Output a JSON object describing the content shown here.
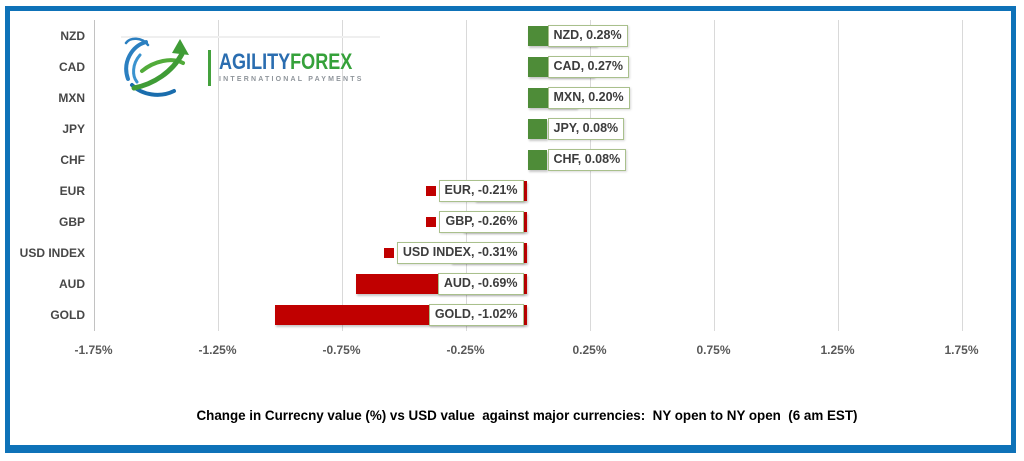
{
  "frame": {
    "border_color": "#0e72b8"
  },
  "logo": {
    "brand_primary": "AGILITY",
    "brand_secondary": "FOREX",
    "tagline": "INTERNATIONAL PAYMENTS",
    "primary_color": "#2a6db0",
    "secondary_color": "#35a13a",
    "separator_color": "#44a13d"
  },
  "chart_data": {
    "type": "bar",
    "orientation": "horizontal",
    "title": "Change in Currecny value (%) vs USD value  against major currencies:  NY open to NY open  (6 am EST)",
    "categories": [
      "NZD",
      "CAD",
      "MXN",
      "JPY",
      "CHF",
      "EUR",
      "GBP",
      "USD INDEX",
      "AUD",
      "GOLD"
    ],
    "values": [
      0.28,
      0.27,
      0.2,
      0.08,
      0.08,
      -0.21,
      -0.26,
      -0.31,
      -0.69,
      -1.02
    ],
    "data_labels": [
      "NZD, 0.28%",
      "CAD, 0.27%",
      "MXN, 0.20%",
      "JPY, 0.08%",
      "CHF, 0.08%",
      "EUR, -0.21%",
      "GBP, -0.26%",
      "USD INDEX, -0.31%",
      "AUD, -0.69%",
      "GOLD, -1.02%"
    ],
    "x_tick_labels": [
      "-1.75%",
      "-1.25%",
      "-0.75%",
      "-0.25%",
      "0.25%",
      "0.75%",
      "1.25%",
      "1.75%"
    ],
    "x_tick_values": [
      -1.75,
      -1.25,
      -0.75,
      -0.25,
      0.25,
      0.75,
      1.25,
      1.75
    ],
    "xlim": [
      -1.75,
      1.75
    ],
    "grid": true,
    "legend": false,
    "positive_color": "#4e8c38",
    "negative_color": "#c00000",
    "label_box_border_color": "#a9c08c"
  }
}
